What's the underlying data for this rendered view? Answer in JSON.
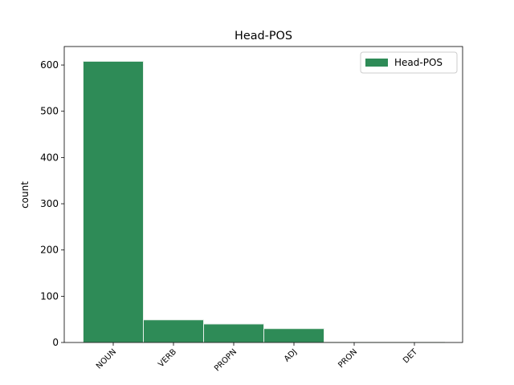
{
  "chart_data": {
    "type": "bar",
    "title": "Head-POS",
    "y_label": "count",
    "categories": [
      "NOUN",
      "VERB",
      "PROPN",
      "ADJ",
      "PRON",
      "DET"
    ],
    "series": [
      {
        "name": "Head-POS",
        "color": "#2e8b57",
        "values": [
          608,
          49,
          40,
          30,
          1,
          1
        ]
      }
    ],
    "ylim": [
      0,
      640
    ],
    "yticks": [
      0,
      100,
      200,
      300,
      400,
      500,
      600
    ],
    "legend": "upper right"
  }
}
